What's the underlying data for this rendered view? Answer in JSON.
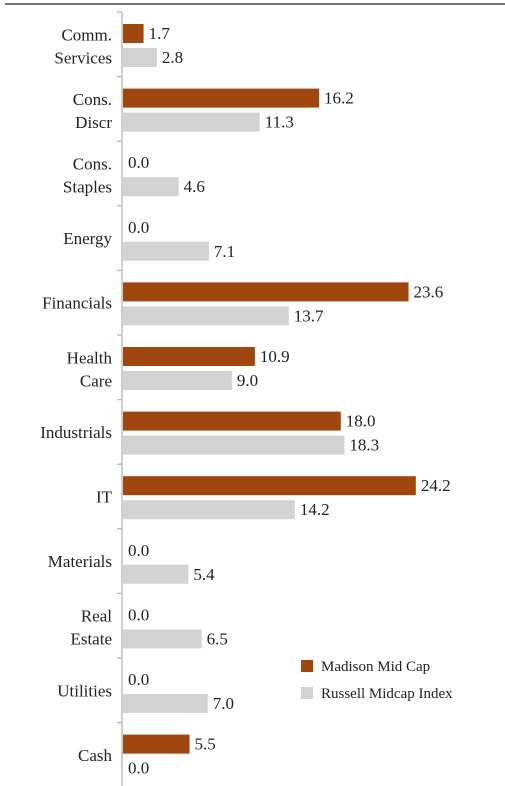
{
  "chart_data": {
    "type": "bar",
    "orientation": "horizontal",
    "categories": [
      [
        "Comm.",
        "Services"
      ],
      [
        "Cons.",
        "Discr"
      ],
      [
        "Cons.",
        "Staples"
      ],
      [
        "Energy"
      ],
      [
        "Financials"
      ],
      [
        "Health",
        "Care"
      ],
      [
        "Industrials"
      ],
      [
        "IT"
      ],
      [
        "Materials"
      ],
      [
        "Real",
        "Estate"
      ],
      [
        "Utilities"
      ],
      [
        "Cash"
      ]
    ],
    "series": [
      {
        "name": "Madison Mid Cap",
        "color": "#A0460F",
        "values": [
          1.7,
          16.2,
          0.0,
          0.0,
          23.6,
          10.9,
          18.0,
          24.2,
          0.0,
          0.0,
          0.0,
          5.5
        ],
        "labels": [
          "1.7",
          "16.2",
          "0.0",
          "0.0",
          "23.6",
          "10.9",
          "18.0",
          "24.2",
          "0.0",
          "0.0",
          "0.0",
          "5.5"
        ]
      },
      {
        "name": "Russell Midcap Index",
        "color": "#D3D3D3",
        "values": [
          2.8,
          11.3,
          4.6,
          7.1,
          13.7,
          9.0,
          18.3,
          14.2,
          5.4,
          6.5,
          7.0,
          0.0
        ],
        "labels": [
          "2.8",
          "11.3",
          "4.6",
          "7.1",
          "13.7",
          "9.0",
          "18.3",
          "14.2",
          "5.4",
          "6.5",
          "7.0",
          "0.0"
        ]
      }
    ],
    "xlim": [
      0,
      26
    ],
    "grid": false,
    "legend_position": "bottom-right"
  }
}
